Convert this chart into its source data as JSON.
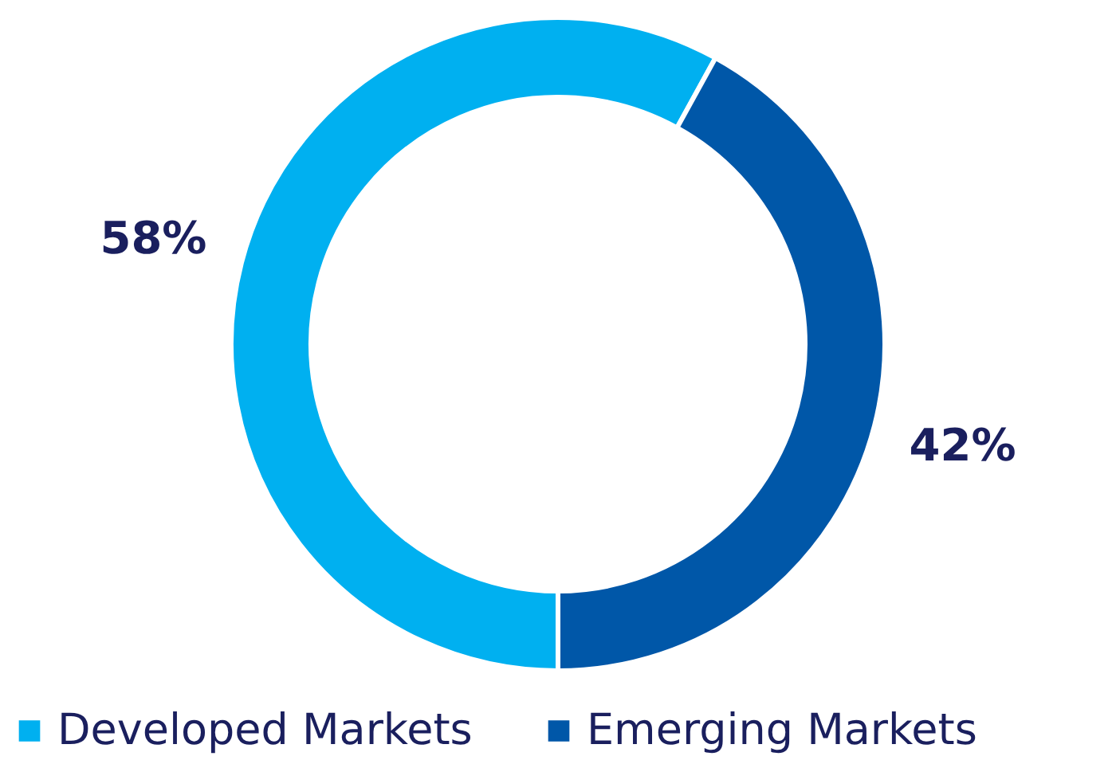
{
  "chart_data": {
    "type": "donut",
    "categories": [
      "Developed Markets",
      "Emerging Markets"
    ],
    "values": [
      58,
      42
    ],
    "colors": [
      "#00b0f0",
      "#0057a8"
    ],
    "value_labels": [
      "58%",
      "42%"
    ],
    "legend": "bottom"
  }
}
